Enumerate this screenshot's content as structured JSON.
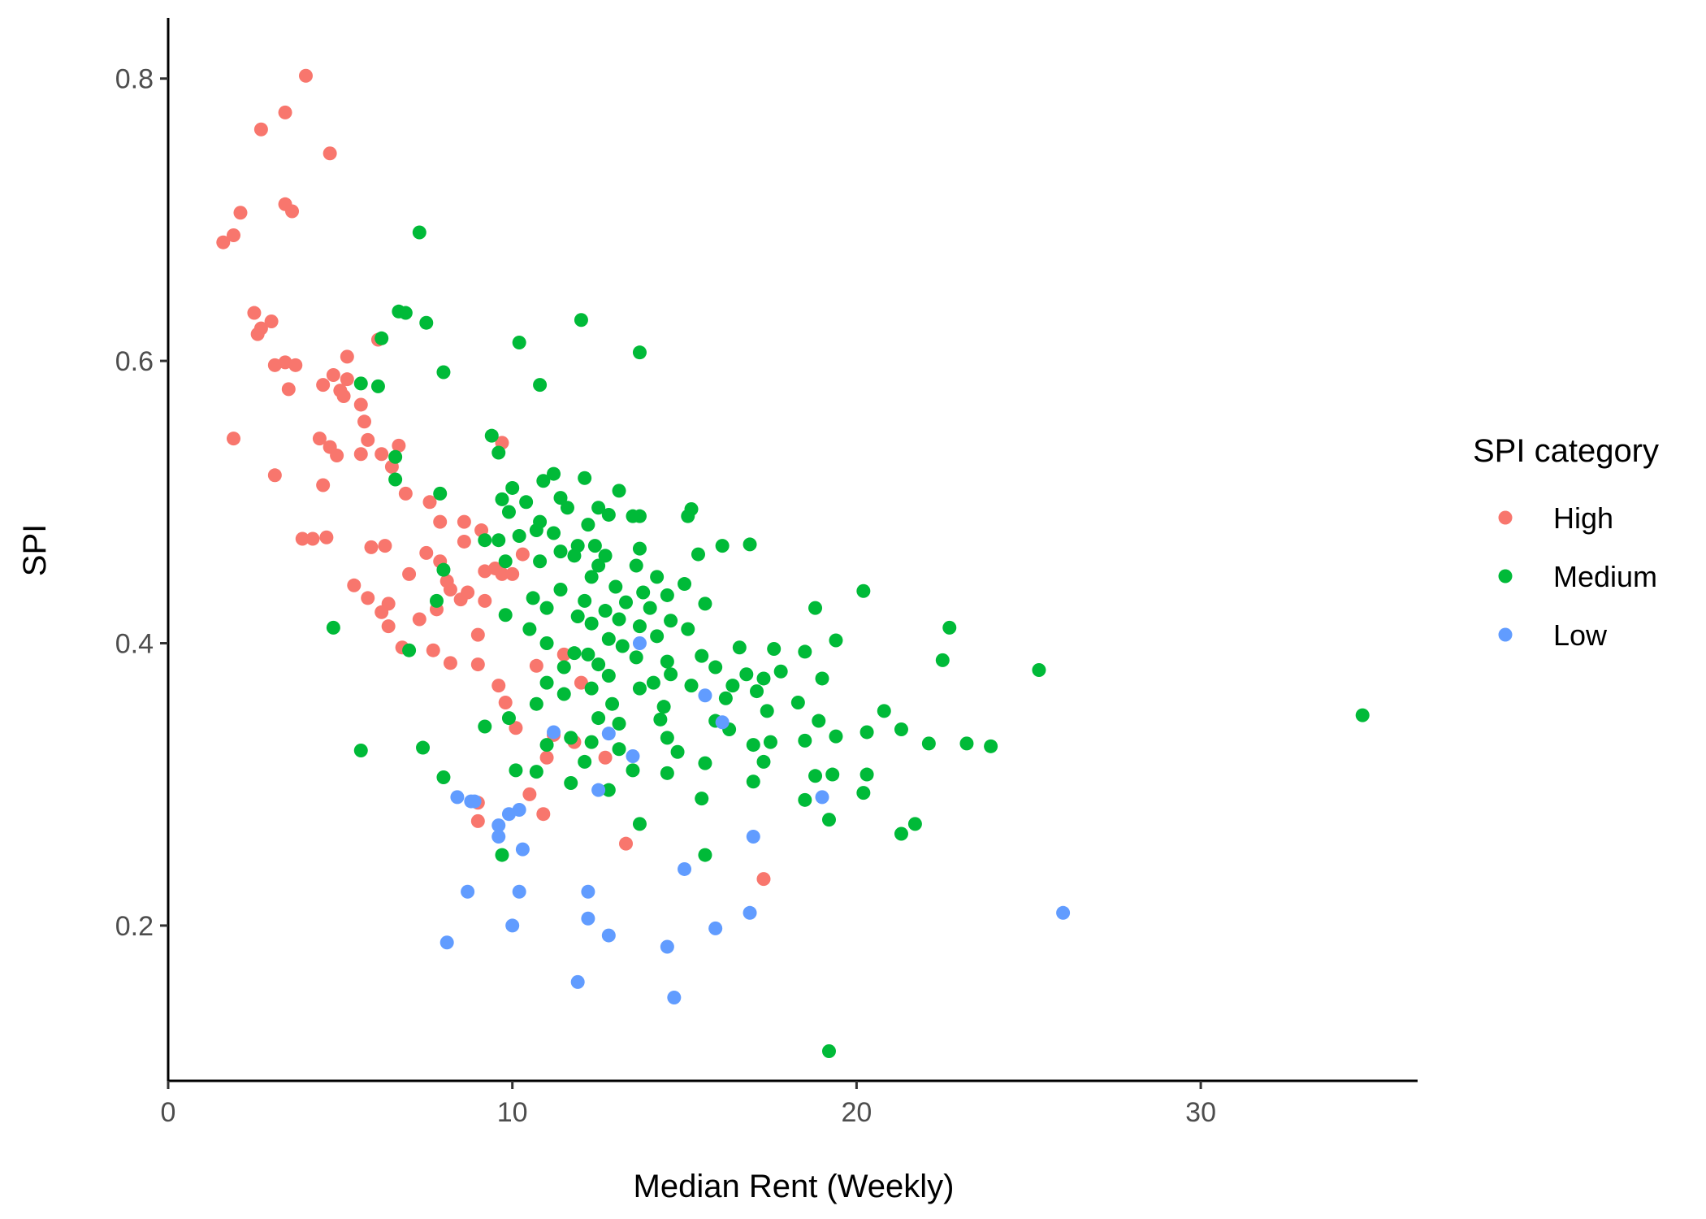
{
  "chart_data": {
    "type": "scatter",
    "title": "",
    "xlabel": "Median Rent (Weekly)",
    "ylabel": "SPI",
    "xlim": [
      0,
      36.3
    ],
    "ylim": [
      0.09,
      0.843
    ],
    "x_ticks": [
      0,
      10,
      20,
      30
    ],
    "y_ticks": [
      0.2,
      0.4,
      0.6,
      0.8
    ],
    "grid": false,
    "legend": {
      "title": "SPI category",
      "position": "right",
      "entries": [
        {
          "name": "High",
          "color": "#F8766D"
        },
        {
          "name": "Medium",
          "color": "#00BA38"
        },
        {
          "name": "Low",
          "color": "#619CFF"
        }
      ]
    },
    "series": [
      {
        "name": "High",
        "color": "#F8766D",
        "points": [
          [
            4.0,
            0.802
          ],
          [
            3.4,
            0.776
          ],
          [
            2.7,
            0.764
          ],
          [
            4.7,
            0.747
          ],
          [
            3.4,
            0.711
          ],
          [
            3.6,
            0.706
          ],
          [
            2.1,
            0.705
          ],
          [
            1.9,
            0.689
          ],
          [
            1.6,
            0.684
          ],
          [
            2.5,
            0.634
          ],
          [
            3.0,
            0.628
          ],
          [
            2.7,
            0.623
          ],
          [
            2.6,
            0.619
          ],
          [
            6.1,
            0.615
          ],
          [
            5.2,
            0.603
          ],
          [
            3.4,
            0.599
          ],
          [
            3.1,
            0.597
          ],
          [
            3.7,
            0.597
          ],
          [
            4.8,
            0.59
          ],
          [
            5.2,
            0.587
          ],
          [
            4.5,
            0.583
          ],
          [
            3.5,
            0.58
          ],
          [
            5.0,
            0.579
          ],
          [
            5.1,
            0.575
          ],
          [
            5.6,
            0.569
          ],
          [
            5.7,
            0.557
          ],
          [
            1.9,
            0.545
          ],
          [
            4.4,
            0.545
          ],
          [
            5.8,
            0.544
          ],
          [
            9.7,
            0.542
          ],
          [
            6.7,
            0.54
          ],
          [
            4.7,
            0.539
          ],
          [
            4.9,
            0.533
          ],
          [
            5.6,
            0.534
          ],
          [
            6.2,
            0.534
          ],
          [
            6.5,
            0.525
          ],
          [
            3.1,
            0.519
          ],
          [
            4.5,
            0.512
          ],
          [
            6.9,
            0.506
          ],
          [
            7.6,
            0.5
          ],
          [
            7.9,
            0.486
          ],
          [
            8.6,
            0.486
          ],
          [
            9.1,
            0.48
          ],
          [
            3.9,
            0.474
          ],
          [
            4.2,
            0.474
          ],
          [
            4.6,
            0.475
          ],
          [
            8.6,
            0.472
          ],
          [
            5.9,
            0.468
          ],
          [
            6.3,
            0.469
          ],
          [
            7.5,
            0.464
          ],
          [
            10.3,
            0.463
          ],
          [
            7.9,
            0.458
          ],
          [
            9.5,
            0.453
          ],
          [
            9.2,
            0.451
          ],
          [
            7.0,
            0.449
          ],
          [
            9.7,
            0.449
          ],
          [
            10.0,
            0.449
          ],
          [
            8.1,
            0.444
          ],
          [
            5.4,
            0.441
          ],
          [
            8.2,
            0.438
          ],
          [
            8.7,
            0.436
          ],
          [
            8.5,
            0.431
          ],
          [
            5.8,
            0.432
          ],
          [
            9.2,
            0.43
          ],
          [
            6.4,
            0.428
          ],
          [
            6.2,
            0.422
          ],
          [
            7.8,
            0.424
          ],
          [
            7.3,
            0.417
          ],
          [
            6.4,
            0.412
          ],
          [
            9.0,
            0.406
          ],
          [
            6.8,
            0.397
          ],
          [
            7.7,
            0.395
          ],
          [
            11.5,
            0.392
          ],
          [
            9.0,
            0.385
          ],
          [
            8.2,
            0.386
          ],
          [
            10.7,
            0.384
          ],
          [
            9.6,
            0.37
          ],
          [
            12.0,
            0.372
          ],
          [
            9.8,
            0.358
          ],
          [
            10.1,
            0.34
          ],
          [
            11.2,
            0.335
          ],
          [
            11.8,
            0.33
          ],
          [
            11.0,
            0.319
          ],
          [
            12.7,
            0.319
          ],
          [
            10.5,
            0.293
          ],
          [
            10.9,
            0.279
          ],
          [
            9.0,
            0.287
          ],
          [
            9.0,
            0.274
          ],
          [
            13.3,
            0.258
          ],
          [
            17.3,
            0.233
          ]
        ]
      },
      {
        "name": "Medium",
        "color": "#00BA38",
        "points": [
          [
            7.3,
            0.691
          ],
          [
            6.7,
            0.635
          ],
          [
            6.9,
            0.634
          ],
          [
            12.0,
            0.629
          ],
          [
            7.5,
            0.627
          ],
          [
            6.2,
            0.616
          ],
          [
            10.2,
            0.613
          ],
          [
            13.7,
            0.606
          ],
          [
            8.0,
            0.592
          ],
          [
            10.8,
            0.583
          ],
          [
            5.6,
            0.584
          ],
          [
            6.1,
            0.582
          ],
          [
            9.4,
            0.547
          ],
          [
            9.6,
            0.535
          ],
          [
            6.6,
            0.532
          ],
          [
            6.6,
            0.516
          ],
          [
            11.2,
            0.52
          ],
          [
            12.1,
            0.517
          ],
          [
            10.9,
            0.515
          ],
          [
            7.9,
            0.506
          ],
          [
            10.0,
            0.51
          ],
          [
            13.1,
            0.508
          ],
          [
            11.4,
            0.503
          ],
          [
            9.7,
            0.502
          ],
          [
            10.4,
            0.5
          ],
          [
            12.5,
            0.496
          ],
          [
            11.6,
            0.496
          ],
          [
            15.2,
            0.495
          ],
          [
            9.9,
            0.493
          ],
          [
            13.5,
            0.49
          ],
          [
            15.1,
            0.49
          ],
          [
            12.8,
            0.491
          ],
          [
            13.7,
            0.49
          ],
          [
            10.8,
            0.486
          ],
          [
            12.2,
            0.484
          ],
          [
            11.2,
            0.478
          ],
          [
            10.7,
            0.48
          ],
          [
            10.2,
            0.476
          ],
          [
            9.6,
            0.473
          ],
          [
            9.2,
            0.473
          ],
          [
            11.9,
            0.469
          ],
          [
            12.4,
            0.469
          ],
          [
            16.1,
            0.469
          ],
          [
            16.9,
            0.47
          ],
          [
            13.7,
            0.467
          ],
          [
            11.4,
            0.465
          ],
          [
            11.8,
            0.462
          ],
          [
            12.7,
            0.462
          ],
          [
            15.4,
            0.463
          ],
          [
            9.8,
            0.458
          ],
          [
            10.8,
            0.458
          ],
          [
            12.5,
            0.455
          ],
          [
            13.6,
            0.455
          ],
          [
            14.2,
            0.447
          ],
          [
            12.3,
            0.447
          ],
          [
            15.0,
            0.442
          ],
          [
            13.0,
            0.44
          ],
          [
            11.4,
            0.438
          ],
          [
            13.8,
            0.436
          ],
          [
            14.5,
            0.434
          ],
          [
            10.6,
            0.432
          ],
          [
            8.0,
            0.452
          ],
          [
            7.8,
            0.43
          ],
          [
            12.1,
            0.43
          ],
          [
            13.3,
            0.429
          ],
          [
            15.6,
            0.428
          ],
          [
            14.0,
            0.425
          ],
          [
            18.8,
            0.425
          ],
          [
            11.0,
            0.425
          ],
          [
            12.7,
            0.423
          ],
          [
            9.8,
            0.42
          ],
          [
            11.9,
            0.419
          ],
          [
            13.1,
            0.417
          ],
          [
            14.6,
            0.416
          ],
          [
            20.2,
            0.437
          ],
          [
            12.3,
            0.414
          ],
          [
            13.7,
            0.412
          ],
          [
            10.5,
            0.41
          ],
          [
            15.1,
            0.41
          ],
          [
            4.8,
            0.411
          ],
          [
            22.7,
            0.411
          ],
          [
            14.2,
            0.405
          ],
          [
            12.8,
            0.403
          ],
          [
            19.4,
            0.402
          ],
          [
            11.0,
            0.4
          ],
          [
            13.2,
            0.398
          ],
          [
            16.6,
            0.397
          ],
          [
            17.6,
            0.396
          ],
          [
            18.5,
            0.394
          ],
          [
            11.8,
            0.393
          ],
          [
            7.0,
            0.395
          ],
          [
            12.2,
            0.392
          ],
          [
            13.6,
            0.39
          ],
          [
            15.5,
            0.391
          ],
          [
            22.5,
            0.388
          ],
          [
            14.5,
            0.387
          ],
          [
            12.5,
            0.385
          ],
          [
            11.5,
            0.383
          ],
          [
            15.9,
            0.383
          ],
          [
            25.3,
            0.381
          ],
          [
            17.8,
            0.38
          ],
          [
            14.6,
            0.378
          ],
          [
            16.8,
            0.378
          ],
          [
            12.8,
            0.377
          ],
          [
            17.3,
            0.375
          ],
          [
            19.0,
            0.375
          ],
          [
            11.0,
            0.372
          ],
          [
            14.1,
            0.372
          ],
          [
            15.2,
            0.37
          ],
          [
            16.4,
            0.37
          ],
          [
            12.3,
            0.368
          ],
          [
            13.7,
            0.368
          ],
          [
            17.1,
            0.366
          ],
          [
            11.5,
            0.364
          ],
          [
            16.2,
            0.361
          ],
          [
            18.3,
            0.358
          ],
          [
            10.7,
            0.357
          ],
          [
            12.9,
            0.357
          ],
          [
            14.4,
            0.355
          ],
          [
            17.4,
            0.352
          ],
          [
            20.8,
            0.352
          ],
          [
            34.7,
            0.349
          ],
          [
            9.9,
            0.347
          ],
          [
            12.5,
            0.347
          ],
          [
            14.3,
            0.346
          ],
          [
            15.9,
            0.345
          ],
          [
            18.9,
            0.345
          ],
          [
            13.1,
            0.343
          ],
          [
            16.3,
            0.339
          ],
          [
            21.3,
            0.339
          ],
          [
            20.3,
            0.337
          ],
          [
            14.5,
            0.333
          ],
          [
            19.4,
            0.334
          ],
          [
            11.7,
            0.333
          ],
          [
            9.2,
            0.341
          ],
          [
            17.0,
            0.328
          ],
          [
            17.5,
            0.33
          ],
          [
            18.5,
            0.331
          ],
          [
            23.2,
            0.329
          ],
          [
            22.1,
            0.329
          ],
          [
            23.9,
            0.327
          ],
          [
            5.6,
            0.324
          ],
          [
            7.4,
            0.326
          ],
          [
            11.0,
            0.328
          ],
          [
            12.3,
            0.33
          ],
          [
            13.1,
            0.325
          ],
          [
            14.8,
            0.323
          ],
          [
            15.6,
            0.315
          ],
          [
            17.3,
            0.316
          ],
          [
            12.1,
            0.316
          ],
          [
            13.5,
            0.31
          ],
          [
            14.5,
            0.308
          ],
          [
            10.7,
            0.309
          ],
          [
            10.1,
            0.31
          ],
          [
            19.3,
            0.307
          ],
          [
            20.3,
            0.307
          ],
          [
            8.0,
            0.305
          ],
          [
            17.0,
            0.302
          ],
          [
            11.7,
            0.301
          ],
          [
            12.8,
            0.296
          ],
          [
            18.5,
            0.289
          ],
          [
            19.2,
            0.275
          ],
          [
            21.7,
            0.272
          ],
          [
            21.3,
            0.265
          ],
          [
            13.7,
            0.272
          ],
          [
            15.6,
            0.25
          ],
          [
            9.7,
            0.25
          ],
          [
            19.2,
            0.111
          ],
          [
            20.2,
            0.294
          ],
          [
            18.8,
            0.306
          ],
          [
            15.5,
            0.29
          ]
        ]
      },
      {
        "name": "Low",
        "color": "#619CFF",
        "points": [
          [
            16.1,
            0.344
          ],
          [
            12.8,
            0.336
          ],
          [
            11.2,
            0.337
          ],
          [
            13.5,
            0.32
          ],
          [
            12.5,
            0.296
          ],
          [
            8.4,
            0.291
          ],
          [
            8.8,
            0.288
          ],
          [
            8.9,
            0.288
          ],
          [
            19.0,
            0.291
          ],
          [
            10.2,
            0.282
          ],
          [
            9.9,
            0.279
          ],
          [
            9.6,
            0.271
          ],
          [
            9.6,
            0.263
          ],
          [
            17.0,
            0.263
          ],
          [
            10.3,
            0.254
          ],
          [
            15.0,
            0.24
          ],
          [
            8.7,
            0.224
          ],
          [
            10.2,
            0.224
          ],
          [
            12.2,
            0.224
          ],
          [
            26.0,
            0.209
          ],
          [
            16.9,
            0.209
          ],
          [
            12.2,
            0.205
          ],
          [
            10.0,
            0.2
          ],
          [
            15.9,
            0.198
          ],
          [
            12.8,
            0.193
          ],
          [
            8.1,
            0.188
          ],
          [
            14.5,
            0.185
          ],
          [
            11.9,
            0.16
          ],
          [
            14.7,
            0.149
          ],
          [
            15.6,
            0.363
          ],
          [
            13.7,
            0.4
          ]
        ]
      }
    ]
  }
}
